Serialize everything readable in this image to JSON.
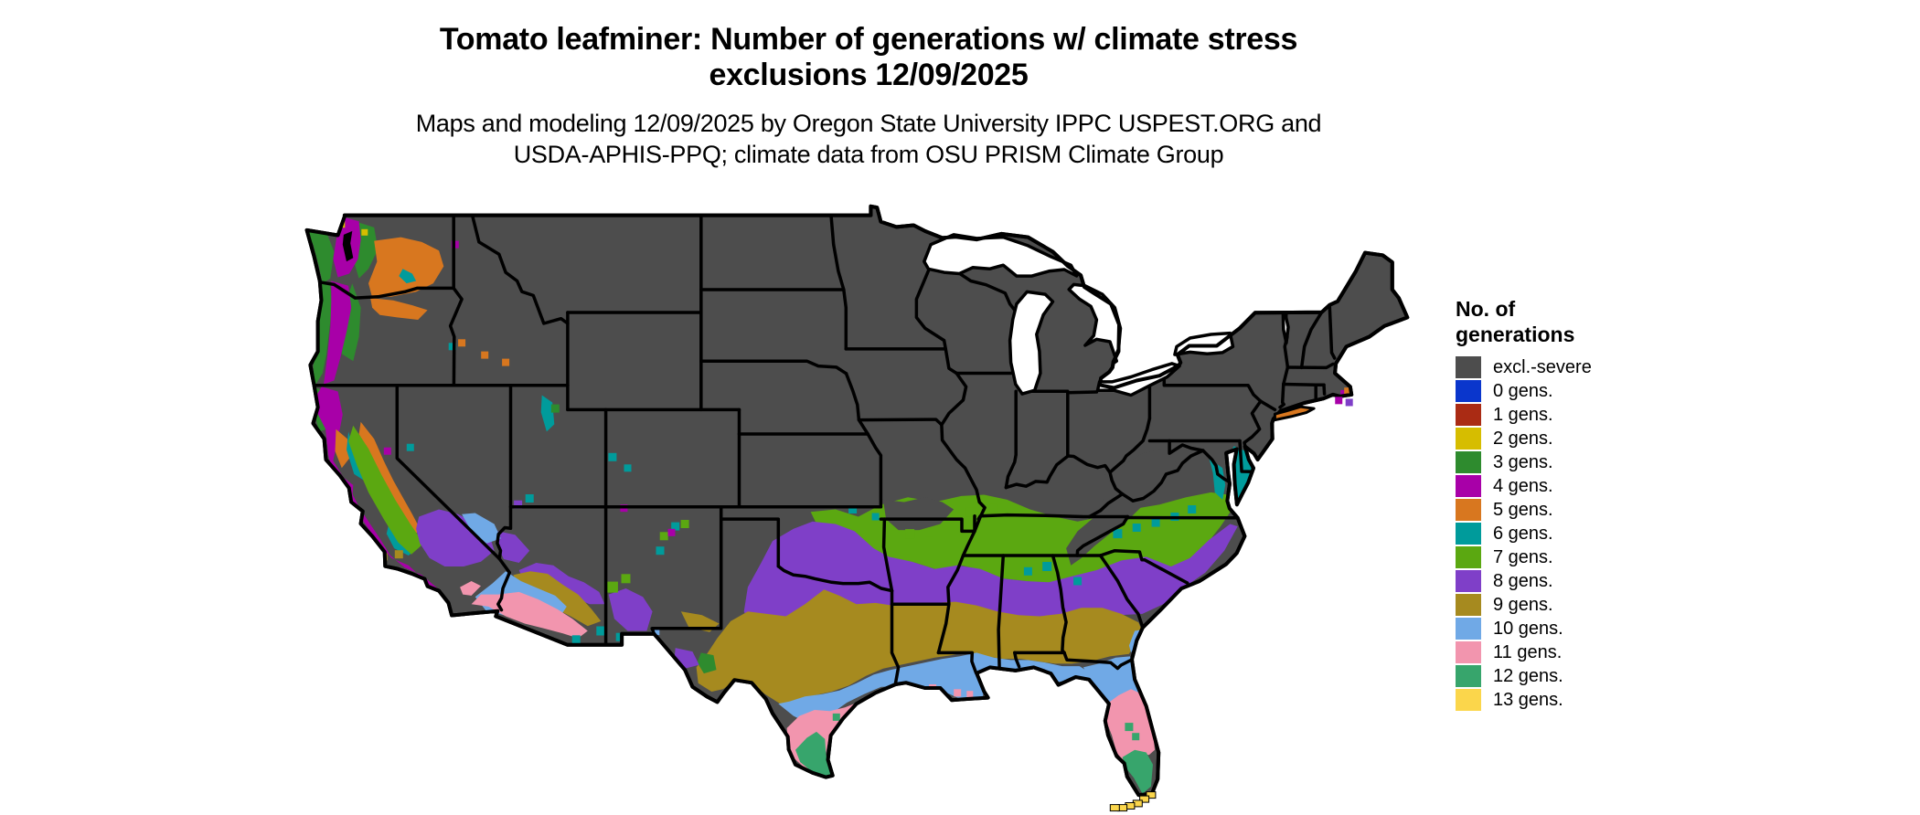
{
  "title": {
    "line1": "Tomato leafminer: Number of generations w/ climate stress",
    "line2": "exclusions 12/09/2025"
  },
  "subtitle": {
    "line1": "Maps and modeling 12/09/2025 by Oregon State University IPPC USPEST.ORG and",
    "line2": "USDA-APHIS-PPQ; climate data from OSU PRISM Climate Group"
  },
  "legend": {
    "title_line1": "No. of",
    "title_line2": "generations",
    "items": [
      {
        "key": "excl",
        "label": "excl.-severe",
        "color": "#4D4D4D"
      },
      {
        "key": "g0",
        "label": "0 gens.",
        "color": "#0A36CC"
      },
      {
        "key": "g1",
        "label": "1 gens.",
        "color": "#AA2B14"
      },
      {
        "key": "g2",
        "label": "2 gens.",
        "color": "#D6BD00"
      },
      {
        "key": "g3",
        "label": "3 gens.",
        "color": "#2E8B2E"
      },
      {
        "key": "g4",
        "label": "4 gens.",
        "color": "#A800A8"
      },
      {
        "key": "g5",
        "label": "5 gens.",
        "color": "#D8771F"
      },
      {
        "key": "g6",
        "label": "6 gens.",
        "color": "#009B9B"
      },
      {
        "key": "g7",
        "label": "7 gens.",
        "color": "#5BA811"
      },
      {
        "key": "g8",
        "label": "8 gens.",
        "color": "#7F3FC8"
      },
      {
        "key": "g9",
        "label": "9 gens.",
        "color": "#A68A1F"
      },
      {
        "key": "g10",
        "label": "10 gens.",
        "color": "#70A9E6"
      },
      {
        "key": "g11",
        "label": "11 gens.",
        "color": "#F295AE"
      },
      {
        "key": "g12",
        "label": "12 gens.",
        "color": "#37A56C"
      },
      {
        "key": "g13",
        "label": "13 gens.",
        "color": "#FBD64B"
      }
    ]
  },
  "map": {
    "name": "Contiguous United States choropleth of tomato leafminer generations",
    "background_color": "#FFFFFF",
    "land_default_class": "excl.-severe",
    "boundary_color": "#000000",
    "water_color": "#FFFFFF",
    "regions_summary": [
      "Northern, interior and mountain US: excl.-severe (dark gray)",
      "Washington/Oregon coast and Cascades: 3 generations; Puget/Willamette lowlands: 4",
      "Columbia Basin of eastern WA/OR: 5 generations with 6-gen core",
      "California Central Valley: 6-7 generations; coastal CA: 4-5",
      "Mojave Desert and southern NM: 8 generations",
      "Arizona mid-elevation belt: 9 generations",
      "Phoenix/Yuma/Imperial and Las Vegas lowlands: 10-11 generations",
      "Southern Plains (N TX/OK): 8; central Texas: 9 generations",
      "Gulf Coast and north Florida: 10 generations",
      "South Texas: 11-12 generations; central Florida: 11",
      "South Florida: 12 generations; Florida Keys: 13",
      "Southeast Piedmont through mid-South: 7-8 generations",
      "Appalachians and Ozarks: excl.-severe (dark gray)",
      "Long Island and Cape Cod fringe: 5 generations; Chesapeake/Delmarva: 6"
    ]
  }
}
